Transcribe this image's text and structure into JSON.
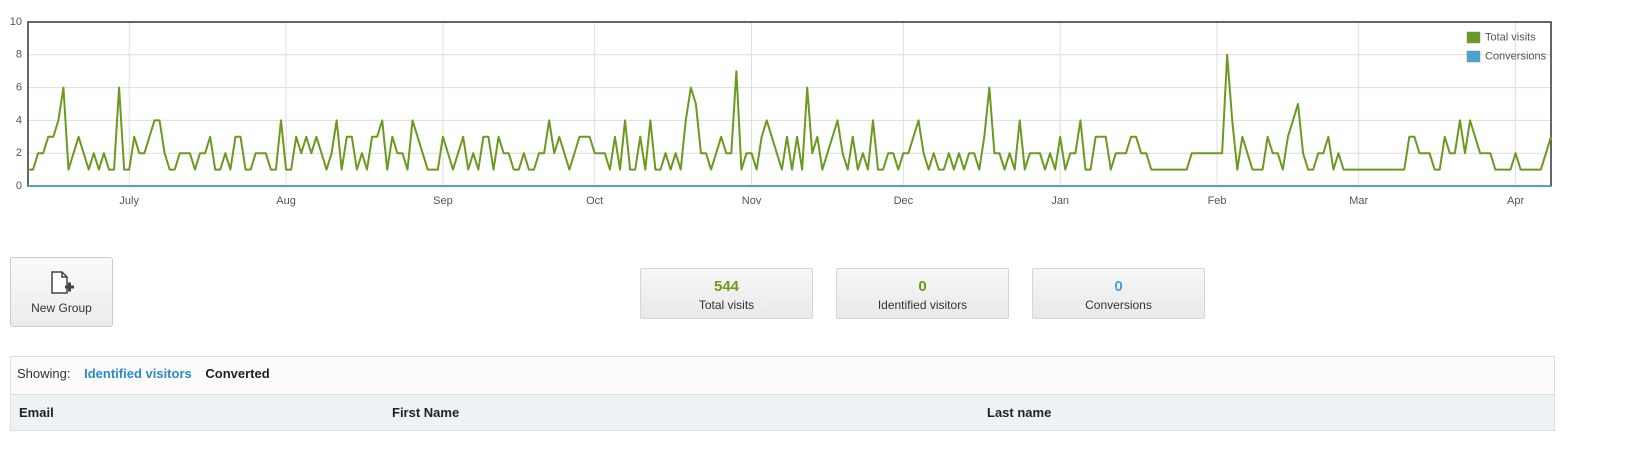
{
  "chart_data": {
    "type": "line",
    "categories": [
      null,
      null,
      null,
      null,
      null,
      null,
      null,
      null,
      null,
      null,
      null,
      null,
      null,
      null,
      null,
      null,
      null,
      null,
      null,
      null,
      "July",
      null,
      null,
      null,
      null,
      null,
      null,
      null,
      null,
      null,
      null,
      null,
      null,
      null,
      null,
      null,
      null,
      null,
      null,
      null,
      null,
      null,
      null,
      null,
      null,
      null,
      null,
      null,
      null,
      null,
      null,
      "Aug",
      null,
      null,
      null,
      null,
      null,
      null,
      null,
      null,
      null,
      null,
      null,
      null,
      null,
      null,
      null,
      null,
      null,
      null,
      null,
      null,
      null,
      null,
      null,
      null,
      null,
      null,
      null,
      null,
      null,
      null,
      "Sep",
      null,
      null,
      null,
      null,
      null,
      null,
      null,
      null,
      null,
      null,
      null,
      null,
      null,
      null,
      null,
      null,
      null,
      null,
      null,
      null,
      null,
      null,
      null,
      null,
      null,
      null,
      null,
      null,
      null,
      "Oct",
      null,
      null,
      null,
      null,
      null,
      null,
      null,
      null,
      null,
      null,
      null,
      null,
      null,
      null,
      null,
      null,
      null,
      null,
      null,
      null,
      null,
      null,
      null,
      null,
      null,
      null,
      null,
      null,
      null,
      null,
      "Nov",
      null,
      null,
      null,
      null,
      null,
      null,
      null,
      null,
      null,
      null,
      null,
      null,
      null,
      null,
      null,
      null,
      null,
      null,
      null,
      null,
      null,
      null,
      null,
      null,
      null,
      null,
      null,
      null,
      null,
      "Dec",
      null,
      null,
      null,
      null,
      null,
      null,
      null,
      null,
      null,
      null,
      null,
      null,
      null,
      null,
      null,
      null,
      null,
      null,
      null,
      null,
      null,
      null,
      null,
      null,
      null,
      null,
      null,
      null,
      null,
      null,
      "Jan",
      null,
      null,
      null,
      null,
      null,
      null,
      null,
      null,
      null,
      null,
      null,
      null,
      null,
      null,
      null,
      null,
      null,
      null,
      null,
      null,
      null,
      null,
      null,
      null,
      null,
      null,
      null,
      null,
      null,
      null,
      "Feb",
      null,
      null,
      null,
      null,
      null,
      null,
      null,
      null,
      null,
      null,
      null,
      null,
      null,
      null,
      null,
      null,
      null,
      null,
      null,
      null,
      null,
      null,
      null,
      null,
      null,
      null,
      null,
      "Mar",
      null,
      null,
      null,
      null,
      null,
      null,
      null,
      null,
      null,
      null,
      null,
      null,
      null,
      null,
      null,
      null,
      null,
      null,
      null,
      null,
      null,
      null,
      null,
      null,
      null,
      null,
      null,
      null,
      null,
      null,
      "Apr",
      null,
      null,
      null,
      null,
      null,
      null,
      null
    ],
    "series": [
      {
        "name": "Total visits",
        "color": "#6a9a1f",
        "values": [
          1,
          1,
          2,
          2,
          3,
          3,
          4,
          6,
          1,
          2,
          3,
          2,
          1,
          2,
          1,
          2,
          1,
          1,
          6,
          1,
          1,
          3,
          2,
          2,
          3,
          4,
          4,
          2,
          1,
          1,
          2,
          2,
          2,
          1,
          2,
          2,
          3,
          1,
          1,
          2,
          1,
          3,
          3,
          1,
          1,
          2,
          2,
          2,
          1,
          1,
          4,
          1,
          1,
          3,
          2,
          3,
          2,
          3,
          2,
          1,
          2,
          4,
          1,
          3,
          3,
          1,
          2,
          1,
          3,
          3,
          4,
          1,
          3,
          2,
          2,
          1,
          4,
          3,
          2,
          1,
          1,
          1,
          3,
          2,
          1,
          2,
          3,
          1,
          2,
          1,
          3,
          3,
          1,
          3,
          2,
          2,
          1,
          1,
          2,
          1,
          1,
          2,
          2,
          4,
          2,
          3,
          2,
          1,
          2,
          3,
          3,
          3,
          2,
          2,
          2,
          1,
          3,
          1,
          4,
          1,
          1,
          3,
          1,
          4,
          1,
          1,
          2,
          1,
          2,
          1,
          4,
          6,
          5,
          2,
          2,
          1,
          2,
          3,
          2,
          2,
          7,
          1,
          2,
          2,
          1,
          3,
          4,
          3,
          2,
          1,
          3,
          1,
          3,
          1,
          6,
          2,
          3,
          1,
          2,
          3,
          4,
          2,
          1,
          3,
          1,
          2,
          1,
          4,
          1,
          1,
          2,
          2,
          1,
          2,
          2,
          3,
          4,
          2,
          1,
          2,
          1,
          1,
          2,
          1,
          2,
          1,
          2,
          2,
          1,
          3,
          6,
          2,
          2,
          1,
          2,
          1,
          4,
          1,
          2,
          2,
          2,
          1,
          2,
          1,
          3,
          1,
          2,
          2,
          4,
          1,
          1,
          3,
          3,
          3,
          1,
          2,
          2,
          2,
          3,
          3,
          2,
          2,
          1,
          1,
          1,
          1,
          1,
          1,
          1,
          1,
          2,
          2,
          2,
          2,
          2,
          2,
          2,
          8,
          4,
          1,
          3,
          2,
          1,
          1,
          1,
          3,
          2,
          2,
          1,
          3,
          4,
          5,
          2,
          1,
          1,
          2,
          2,
          3,
          1,
          2,
          1,
          1,
          1,
          1,
          1,
          1,
          1,
          1,
          1,
          1,
          1,
          1,
          1,
          3,
          3,
          2,
          2,
          2,
          1,
          1,
          3,
          2,
          2,
          4,
          2,
          4,
          3,
          2,
          2,
          2,
          1,
          1,
          1,
          1,
          2,
          1,
          1,
          1,
          1,
          1,
          2,
          3
        ]
      },
      {
        "name": "Conversions",
        "color": "#4aa3d0",
        "values": [
          0,
          0,
          0,
          0,
          0,
          0,
          0,
          0,
          0,
          0,
          0,
          0,
          0,
          0,
          0,
          0,
          0,
          0,
          0,
          0,
          0,
          0,
          0,
          0,
          0,
          0,
          0,
          0,
          0,
          0,
          0,
          0,
          0,
          0,
          0,
          0,
          0,
          0,
          0,
          0,
          0,
          0,
          0,
          0,
          0,
          0,
          0,
          0,
          0,
          0,
          0,
          0,
          0,
          0,
          0,
          0,
          0,
          0,
          0,
          0,
          0,
          0,
          0,
          0,
          0,
          0,
          0,
          0,
          0,
          0,
          0,
          0,
          0,
          0,
          0,
          0,
          0,
          0,
          0,
          0,
          0,
          0,
          0,
          0,
          0,
          0,
          0,
          0,
          0,
          0,
          0,
          0,
          0,
          0,
          0,
          0,
          0,
          0,
          0,
          0,
          0,
          0,
          0,
          0,
          0,
          0,
          0,
          0,
          0,
          0,
          0,
          0,
          0,
          0,
          0,
          0,
          0,
          0,
          0,
          0,
          0,
          0,
          0,
          0,
          0,
          0,
          0,
          0,
          0,
          0,
          0,
          0,
          0,
          0,
          0,
          0,
          0,
          0,
          0,
          0,
          0,
          0,
          0,
          0,
          0,
          0,
          0,
          0,
          0,
          0,
          0,
          0,
          0,
          0,
          0,
          0,
          0,
          0,
          0,
          0,
          0,
          0,
          0,
          0,
          0,
          0,
          0,
          0,
          0,
          0,
          0,
          0,
          0,
          0,
          0,
          0,
          0,
          0,
          0,
          0,
          0,
          0,
          0,
          0,
          0,
          0,
          0,
          0,
          0,
          0,
          0,
          0,
          0,
          0,
          0,
          0,
          0,
          0,
          0,
          0,
          0,
          0,
          0,
          0,
          0,
          0,
          0,
          0,
          0,
          0,
          0,
          0,
          0,
          0,
          0,
          0,
          0,
          0,
          0,
          0,
          0,
          0,
          0,
          0,
          0,
          0,
          0,
          0,
          0,
          0,
          0,
          0,
          0,
          0,
          0,
          0,
          0,
          0,
          0,
          0,
          0,
          0,
          0,
          0,
          0,
          0,
          0,
          0,
          0,
          0,
          0,
          0,
          0,
          0,
          0,
          0,
          0,
          0,
          0,
          0,
          0,
          0,
          0,
          0,
          0,
          0,
          0,
          0,
          0,
          0,
          0,
          0,
          0,
          0,
          0,
          0,
          0,
          0,
          0,
          0,
          0,
          0,
          0,
          0,
          0,
          0,
          0,
          0,
          0,
          0,
          0,
          0,
          0,
          0,
          0,
          0,
          0,
          0,
          0,
          0,
          0,
          0
        ]
      }
    ],
    "ylim": [
      0,
      10
    ],
    "yticks": [
      0,
      2,
      4,
      6,
      8,
      10
    ],
    "grid": true,
    "legend": "top-right"
  },
  "toolbar": {
    "new_group": "New Group"
  },
  "stats": [
    {
      "value": "544",
      "label": "Total visits",
      "color": "#6a9a1f"
    },
    {
      "value": "0",
      "label": "Identified visitors",
      "color": "#6a9a1f"
    },
    {
      "value": "0",
      "label": "Conversions",
      "color": "#4aa3d0"
    }
  ],
  "filter": {
    "label": "Showing:",
    "options": [
      "Identified visitors",
      "Converted"
    ]
  },
  "table": {
    "columns": [
      "Email",
      "First Name",
      "Last name"
    ]
  }
}
